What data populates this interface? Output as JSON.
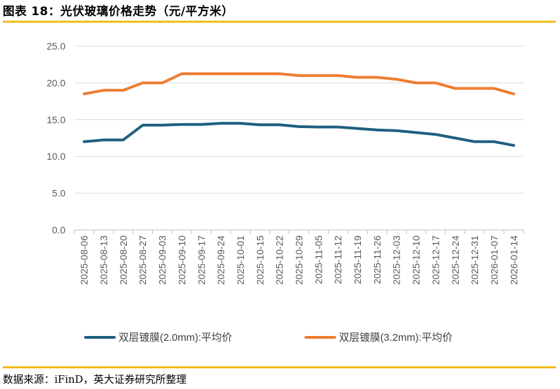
{
  "header": {
    "title": "图表 18：光伏玻璃价格走势（元/平方米）"
  },
  "footer": {
    "source": "数据来源：iFinD，英大证券研究所整理"
  },
  "chart_data": {
    "type": "line",
    "title": "",
    "xlabel": "",
    "ylabel": "",
    "ylim": [
      0,
      25
    ],
    "yticks": [
      "0.0",
      "5.0",
      "10.0",
      "15.0",
      "20.0",
      "25.0"
    ],
    "grid": true,
    "legend_position": "bottom",
    "categories": [
      "2025-08-06",
      "2025-08-13",
      "2025-08-20",
      "2025-08-27",
      "2025-09-03",
      "2025-09-10",
      "2025-09-17",
      "2025-09-24",
      "2025-10-01",
      "2025-10-15",
      "2025-10-22",
      "2025-10-29",
      "2025-11-05",
      "2025-11-12",
      "2025-11-19",
      "2025-11-26",
      "2025-12-03",
      "2025-12-10",
      "2025-12-17",
      "2025-12-24",
      "2025-12-31",
      "2026-01-07",
      "2026-01-14"
    ],
    "series": [
      {
        "name": "双层镀膜(2.0mm):平均价",
        "color": "#1f5f7f",
        "values": [
          12.0,
          12.25,
          12.25,
          14.25,
          14.25,
          14.35,
          14.35,
          14.5,
          14.5,
          14.3,
          14.3,
          14.05,
          14.0,
          14.0,
          13.8,
          13.6,
          13.5,
          13.25,
          13.0,
          12.5,
          12.0,
          12.0,
          11.5
        ]
      },
      {
        "name": "双层镀膜(3.2mm):平均价",
        "color": "#ed7d31",
        "values": [
          18.5,
          19.0,
          19.0,
          20.0,
          20.0,
          21.25,
          21.25,
          21.25,
          21.25,
          21.25,
          21.25,
          21.0,
          21.0,
          21.0,
          20.75,
          20.75,
          20.5,
          20.0,
          20.0,
          19.25,
          19.25,
          19.25,
          18.5
        ]
      }
    ]
  }
}
